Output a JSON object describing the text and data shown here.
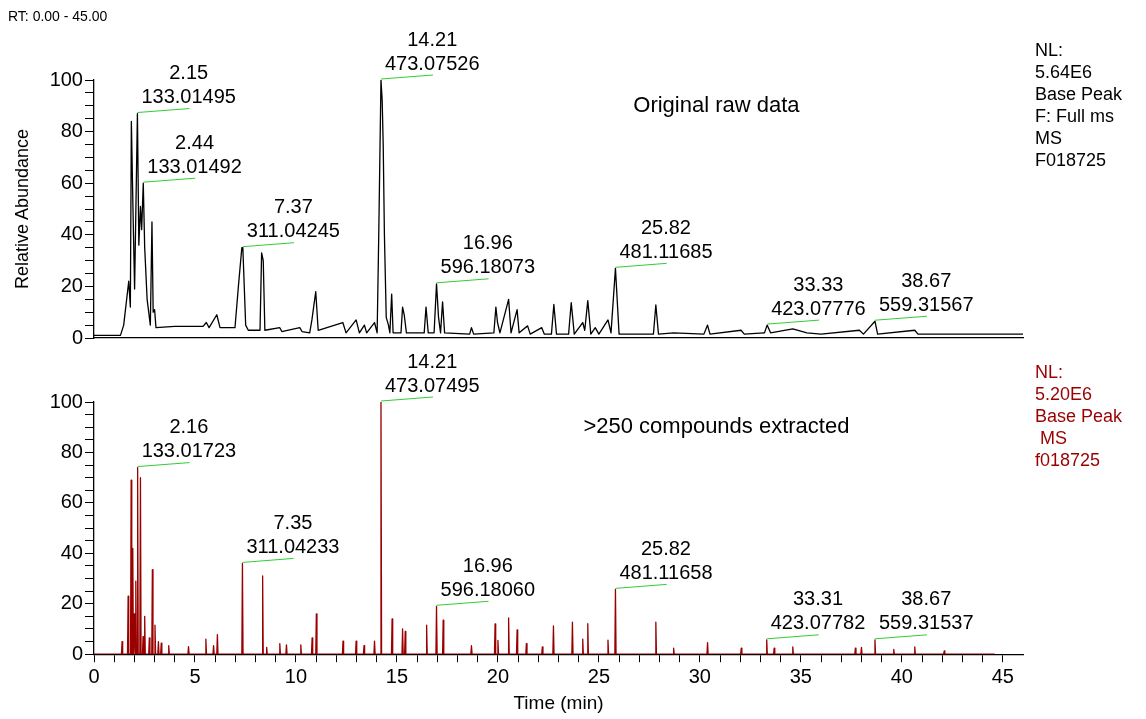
{
  "chart_data": [
    {
      "type": "line",
      "title": "Original raw data",
      "subtitle": "RT: 0.00 - 45.00",
      "ylabel": "Relative Abundance",
      "xlim": [
        0,
        46
      ],
      "ylim": [
        0,
        100
      ],
      "yticks": [
        0,
        {
          "value": 5,
          "label": null
        },
        {
          "value": 10,
          "label": null
        },
        {
          "value": 15,
          "label": null
        },
        20,
        {
          "value": 25,
          "label": null
        },
        {
          "value": 30,
          "label": null
        },
        {
          "value": 35,
          "label": null
        },
        40,
        {
          "value": 45,
          "label": null
        },
        {
          "value": 50,
          "label": null
        },
        {
          "value": 55,
          "label": null
        },
        60,
        {
          "value": 65,
          "label": null
        },
        {
          "value": 70,
          "label": null
        },
        {
          "value": 75,
          "label": null
        },
        80,
        {
          "value": 85,
          "label": null
        },
        {
          "value": 90,
          "label": null
        },
        {
          "value": 95,
          "label": null
        },
        100
      ],
      "tick_labels": "y",
      "grid": false,
      "legend": false,
      "marker": "none",
      "series": [
        {
          "color": "#000000",
          "x": [
            0,
            1.31,
            1.47,
            1.72,
            1.8,
            1.85,
            1.93,
            2.01,
            2.15,
            2.22,
            2.3,
            2.36,
            2.44,
            2.51,
            2.63,
            2.79,
            2.87,
            2.93,
            3.0,
            3.07,
            4.0,
            5.4,
            5.56,
            5.7,
            6.08,
            6.24,
            6.98,
            7.15,
            7.32,
            7.37,
            7.51,
            7.64,
            8.22,
            8.3,
            8.38,
            8.46,
            9.2,
            9.3,
            10.19,
            10.3,
            10.68,
            10.79,
            10.98,
            11.1,
            12.32,
            12.48,
            12.98,
            13.14,
            13.39,
            13.5,
            13.89,
            14.02,
            14.1,
            14.21,
            14.27,
            14.32,
            14.38,
            14.47,
            14.58,
            14.65,
            14.74,
            14.81,
            15.2,
            15.28,
            15.36,
            15.47,
            16.35,
            16.44,
            16.55,
            16.84,
            16.96,
            17.06,
            17.16,
            17.26,
            17.36,
            18.6,
            18.69,
            18.8,
            19.8,
            19.9,
            19.98,
            20.1,
            20.53,
            20.65,
            20.95,
            21.05,
            21.47,
            21.6,
            22.17,
            22.3,
            22.65,
            22.77,
            22.9,
            23.5,
            23.63,
            23.78,
            24.2,
            24.3,
            24.45,
            24.6,
            24.82,
            25.0,
            25.45,
            25.6,
            25.82,
            26.0,
            27.7,
            27.82,
            27.95,
            28.7,
            30.2,
            30.38,
            30.5,
            32.04,
            32.2,
            33.2,
            33.33,
            33.5,
            34.6,
            35.3,
            36.0,
            37.9,
            38.1,
            38.67,
            38.8,
            40.64,
            40.8,
            42.3,
            46
          ],
          "values": [
            1,
            1,
            5,
            22,
            12,
            84,
            50,
            19,
            87,
            36,
            51,
            42,
            60,
            35,
            15,
            5,
            45,
            10,
            11,
            4,
            4.5,
            4.5,
            6,
            4,
            9,
            4,
            4,
            20,
            35,
            35,
            5,
            3,
            3,
            33,
            30,
            3,
            4,
            2.5,
            4,
            2.5,
            2,
            7,
            18,
            3,
            6,
            2,
            7,
            2,
            5,
            2,
            6,
            2,
            40,
            100,
            92,
            75,
            40,
            8,
            5,
            2,
            17,
            2,
            2,
            12,
            9,
            2,
            2,
            12,
            2,
            2,
            21,
            8,
            2,
            14,
            2,
            1.5,
            4,
            1.5,
            2,
            12,
            6,
            2,
            15,
            2,
            11,
            2,
            4.7,
            1.5,
            4,
            1.5,
            1.5,
            13,
            1.5,
            1.5,
            13.7,
            1.5,
            6,
            3,
            14.5,
            1.5,
            4,
            1.5,
            7,
            2,
            27,
            1.5,
            1.5,
            12.8,
            1.5,
            2,
            1.5,
            5,
            1.5,
            3,
            1.5,
            2,
            5,
            2,
            3.5,
            2,
            1.5,
            3,
            1.5,
            6.5,
            1.5,
            3,
            1.5,
            1.5,
            1.5
          ]
        }
      ],
      "annotations": [
        {
          "text": "14.21\n473.07526",
          "x": 14.21,
          "y": 100
        },
        {
          "text": "2.15\n133.01495",
          "x": 2.15,
          "y": 87
        },
        {
          "text": "2.44\n133.01492",
          "x": 2.44,
          "y": 60
        },
        {
          "text": "7.37\n311.04245",
          "x": 7.37,
          "y": 35
        },
        {
          "text": "16.96\n596.18073",
          "x": 16.96,
          "y": 21
        },
        {
          "text": "25.82\n481.11685",
          "x": 25.82,
          "y": 27
        },
        {
          "text": "33.33\n423.07776",
          "x": 33.33,
          "y": 5
        },
        {
          "text": "38.67\n559.31567",
          "x": 38.67,
          "y": 6.5
        },
        "NL:\n5.64E6\nBase Peak\nF: Full ms\nMS\nF018725"
      ]
    },
    {
      "type": "line",
      "title": ">250 compounds extracted",
      "xlabel": "Time (min)",
      "xlim": [
        0,
        46
      ],
      "ylim": [
        0,
        100
      ],
      "xticks": [
        0,
        {
          "value": 1,
          "label": null
        },
        {
          "value": 2,
          "label": null
        },
        {
          "value": 3,
          "label": null
        },
        {
          "value": 4,
          "label": null
        },
        5,
        {
          "value": 6,
          "label": null
        },
        {
          "value": 7,
          "label": null
        },
        {
          "value": 8,
          "label": null
        },
        {
          "value": 9,
          "label": null
        },
        10,
        {
          "value": 11,
          "label": null
        },
        {
          "value": 12,
          "label": null
        },
        {
          "value": 13,
          "label": null
        },
        {
          "value": 14,
          "label": null
        },
        15,
        {
          "value": 16,
          "label": null
        },
        {
          "value": 17,
          "label": null
        },
        {
          "value": 18,
          "label": null
        },
        {
          "value": 19,
          "label": null
        },
        20,
        {
          "value": 21,
          "label": null
        },
        {
          "value": 22,
          "label": null
        },
        {
          "value": 23,
          "label": null
        },
        {
          "value": 24,
          "label": null
        },
        25,
        {
          "value": 26,
          "label": null
        },
        {
          "value": 27,
          "label": null
        },
        {
          "value": 28,
          "label": null
        },
        {
          "value": 29,
          "label": null
        },
        30,
        {
          "value": 31,
          "label": null
        },
        {
          "value": 32,
          "label": null
        },
        {
          "value": 33,
          "label": null
        },
        {
          "value": 34,
          "label": null
        },
        35,
        {
          "value": 36,
          "label": null
        },
        {
          "value": 37,
          "label": null
        },
        {
          "value": 38,
          "label": null
        },
        {
          "value": 39,
          "label": null
        },
        40,
        {
          "value": 41,
          "label": null
        },
        {
          "value": 42,
          "label": null
        },
        {
          "value": 43,
          "label": null
        },
        {
          "value": 44,
          "label": null
        },
        45
      ],
      "yticks": [
        0,
        {
          "value": 5,
          "label": null
        },
        {
          "value": 10,
          "label": null
        },
        {
          "value": 15,
          "label": null
        },
        20,
        {
          "value": 25,
          "label": null
        },
        {
          "value": 30,
          "label": null
        },
        {
          "value": 35,
          "label": null
        },
        40,
        {
          "value": 45,
          "label": null
        },
        {
          "value": 50,
          "label": null
        },
        {
          "value": 55,
          "label": null
        },
        60,
        {
          "value": 65,
          "label": null
        },
        {
          "value": 70,
          "label": null
        },
        {
          "value": 75,
          "label": null
        },
        80,
        {
          "value": 85,
          "label": null
        },
        {
          "value": 90,
          "label": null
        },
        {
          "value": 95,
          "label": null
        },
        100
      ],
      "grid": false,
      "legend": false,
      "marker": "none",
      "series": [
        {
          "color": "#990000",
          "x": [
            0,
            1.36,
            1.39,
            1.42,
            1.66,
            1.69,
            1.72,
            1.81,
            1.84,
            1.87,
            1.89,
            1.92,
            1.95,
            1.97,
            2.0,
            2.03,
            2.04,
            2.07,
            2.1,
            2.13,
            2.16,
            2.19,
            2.27,
            2.3,
            2.33,
            2.4,
            2.43,
            2.46,
            2.48,
            2.51,
            2.54,
            2.71,
            2.74,
            2.77,
            2.86,
            2.89,
            2.92,
            2.99,
            3.02,
            3.05,
            3.16,
            3.19,
            3.22,
            3.3,
            3.33,
            3.36,
            3.67,
            3.7,
            3.73,
            4.65,
            4.68,
            4.71,
            5.51,
            5.54,
            5.57,
            5.89,
            5.92,
            5.95,
            6.08,
            6.11,
            6.14,
            7.32,
            7.35,
            7.38,
            8.32,
            8.35,
            8.38,
            8.52,
            8.55,
            8.58,
            9.17,
            9.2,
            9.23,
            9.5,
            9.53,
            9.56,
            10.21,
            10.24,
            10.27,
            10.77,
            10.8,
            10.83,
            10.98,
            11.01,
            11.04,
            12.3,
            12.33,
            12.36,
            12.95,
            12.98,
            13.01,
            13.34,
            13.37,
            13.4,
            13.86,
            13.89,
            13.92,
            14.18,
            14.21,
            14.24,
            14.73,
            14.76,
            14.79,
            15.25,
            15.28,
            15.31,
            15.38,
            15.41,
            15.44,
            16.44,
            16.47,
            16.5,
            16.93,
            16.96,
            16.99,
            17.26,
            17.29,
            17.32,
            18.66,
            18.69,
            18.72,
            19.83,
            19.86,
            19.89,
            19.97,
            20.0,
            20.03,
            20.5,
            20.53,
            20.56,
            20.92,
            20.95,
            20.98,
            21.38,
            21.41,
            21.44,
            22.17,
            22.2,
            22.23,
            22.72,
            22.75,
            22.78,
            23.66,
            23.69,
            23.72,
            24.17,
            24.2,
            24.23,
            24.42,
            24.45,
            24.48,
            25.42,
            25.45,
            25.48,
            25.79,
            25.82,
            25.85,
            27.79,
            27.82,
            27.85,
            28.67,
            28.7,
            28.73,
            30.35,
            30.38,
            30.41,
            32.02,
            32.05,
            32.08,
            33.28,
            33.31,
            33.34,
            33.65,
            33.68,
            33.71,
            34.57,
            34.6,
            34.63,
            37.67,
            37.7,
            37.73,
            37.97,
            38.0,
            38.03,
            38.64,
            38.67,
            38.7,
            39.57,
            39.6,
            39.63,
            40.61,
            40.64,
            40.67,
            42.07,
            42.1,
            42.13,
            44.6
          ],
          "values": [
            0,
            0,
            5,
            0,
            0,
            23,
            0,
            0,
            69,
            0,
            0,
            42,
            0,
            0,
            16,
            0,
            0,
            29,
            0,
            0,
            74,
            0,
            0,
            70,
            0,
            0,
            7,
            0,
            0,
            15,
            0,
            0,
            6.5,
            0,
            0,
            33.5,
            0,
            0,
            11.5,
            0,
            0,
            5,
            0,
            0,
            4.4,
            0,
            0,
            3.4,
            0,
            0,
            3,
            0,
            0,
            6,
            0,
            0,
            3.4,
            0,
            0,
            7.8,
            0,
            0,
            36,
            0,
            0,
            31,
            0,
            0,
            2.7,
            0,
            0,
            4.2,
            0,
            0,
            3.7,
            0,
            0,
            3.7,
            0,
            0,
            6.5,
            0,
            0,
            16,
            0,
            0,
            5.2,
            0,
            0,
            5.2,
            0,
            0,
            3.4,
            0,
            0,
            5.2,
            0,
            0,
            100,
            0,
            0,
            14,
            0,
            0,
            10,
            0,
            0,
            9,
            0,
            0,
            11.5,
            0,
            0,
            19,
            0,
            0,
            13.5,
            0,
            0,
            3.4,
            0,
            0,
            12,
            0,
            0,
            5.5,
            0,
            0,
            14.4,
            0,
            0,
            9.6,
            0,
            0,
            4.2,
            0,
            0,
            2.9,
            0,
            0,
            11.2,
            0,
            0,
            12.7,
            0,
            0,
            6,
            0,
            0,
            12.1,
            0,
            0,
            5.6,
            0,
            0,
            25.7,
            0,
            0,
            12.7,
            0,
            0,
            2.4,
            0,
            0,
            4.6,
            0,
            0,
            2.4,
            0,
            0,
            5.7,
            0,
            0,
            2.4,
            0,
            0,
            2.9,
            0,
            0,
            2.4,
            0,
            0,
            2.7,
            0,
            0,
            5.7,
            0,
            0,
            1.9,
            0,
            0,
            2.9,
            0,
            0,
            1.3,
            0,
            0
          ]
        }
      ],
      "annotations": [
        {
          "text": "14.21\n473.07495",
          "x": 14.21,
          "y": 100
        },
        {
          "text": "2.16\n133.01723",
          "x": 2.16,
          "y": 74
        },
        {
          "text": "7.35\n311.04233",
          "x": 7.35,
          "y": 36
        },
        {
          "text": "16.96\n596.18060",
          "x": 16.96,
          "y": 19
        },
        {
          "text": "25.82\n481.11658",
          "x": 25.82,
          "y": 25.7
        },
        {
          "text": "33.31\n423.07782",
          "x": 33.31,
          "y": 5.7
        },
        {
          "text": "38.67\n559.31537",
          "x": 38.67,
          "y": 5.7
        },
        "NL:\n5.20E6\nBase Peak\n MS\nf018725"
      ]
    }
  ]
}
